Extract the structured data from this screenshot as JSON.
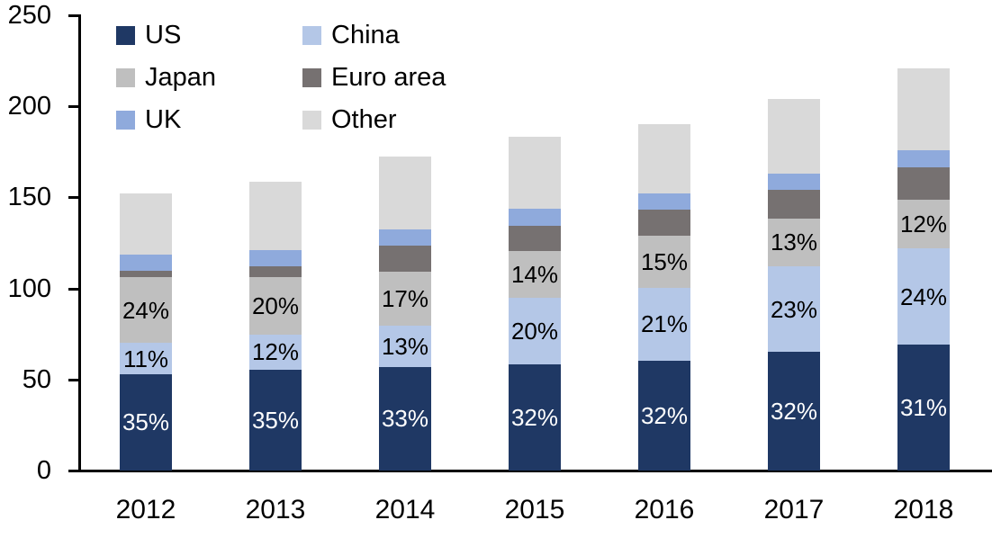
{
  "chart_data": {
    "type": "bar",
    "stacked": true,
    "title": "",
    "xlabel": "",
    "ylabel": "",
    "categories": [
      "2012",
      "2013",
      "2014",
      "2015",
      "2016",
      "2017",
      "2018"
    ],
    "series": [
      {
        "name": "US",
        "color": "#1F3864",
        "values": [
          53,
          55.5,
          57,
          58.5,
          60.5,
          65,
          69
        ],
        "labels": [
          "35%",
          "35%",
          "33%",
          "32%",
          "32%",
          "32%",
          "31%"
        ],
        "label_color": "#FFFFFF"
      },
      {
        "name": "China",
        "color": "#B4C7E7",
        "values": [
          17,
          19,
          22.5,
          36.5,
          40,
          47,
          53
        ],
        "labels": [
          "11%",
          "12%",
          "13%",
          "20%",
          "21%",
          "23%",
          "24%"
        ],
        "label_color": "#000000"
      },
      {
        "name": "Japan",
        "color": "#BFBFBF",
        "values": [
          36,
          31.5,
          29.5,
          25.5,
          28.5,
          26.5,
          26.5
        ],
        "labels": [
          "24%",
          "20%",
          "17%",
          "14%",
          "15%",
          "13%",
          "12%"
        ],
        "label_color": "#000000"
      },
      {
        "name": "Euro area",
        "color": "#767171",
        "values": [
          3.5,
          6,
          14.5,
          14,
          14.5,
          15.5,
          18
        ],
        "labels": null,
        "label_color": null
      },
      {
        "name": "UK",
        "color": "#8FAADC",
        "values": [
          9,
          9,
          9,
          9.5,
          8.5,
          9,
          9.5
        ],
        "labels": null,
        "label_color": null
      },
      {
        "name": "Other",
        "color": "#D9D9D9",
        "values": [
          33.5,
          37.5,
          40,
          39.5,
          38,
          41,
          45
        ],
        "labels": null,
        "label_color": null
      }
    ],
    "totals_estimated": [
      152,
      158.5,
      172.5,
      183.5,
      190,
      204,
      221
    ],
    "y_ticks": [
      "0",
      "50",
      "100",
      "150",
      "200",
      "250"
    ],
    "ylim": [
      0,
      250
    ],
    "grid": false,
    "legend": {
      "position": "top-left",
      "columns": 2,
      "order": [
        "US",
        "China",
        "Japan",
        "Euro area",
        "UK",
        "Other"
      ]
    },
    "axis_color": "#000000",
    "background_color": "#FFFFFF"
  }
}
